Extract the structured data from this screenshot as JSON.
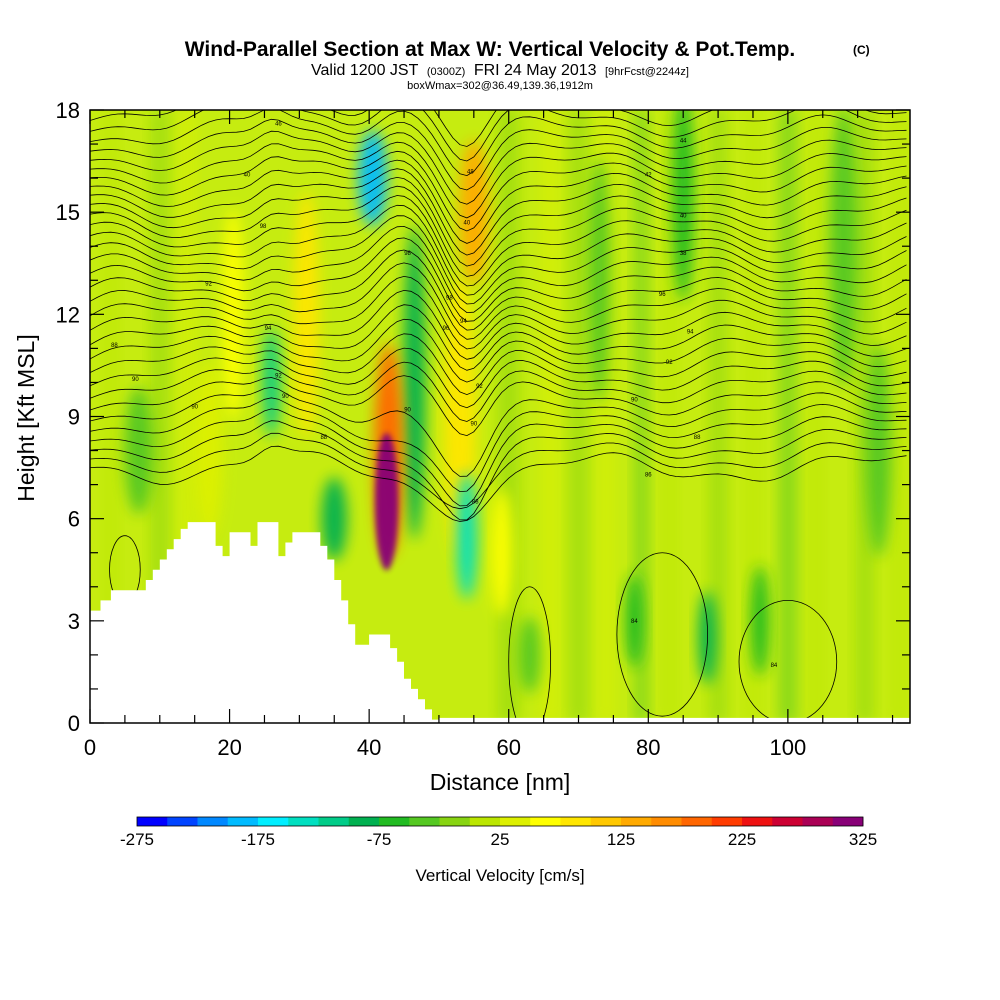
{
  "header": {
    "title": "Wind-Parallel Section at Max W: Vertical Velocity & Pot.Temp.",
    "title_mark": "(C)",
    "valid_main": "Valid 1200 JST",
    "valid_utc": "(0300Z)",
    "valid_date": "FRI 24 May 2013",
    "forecast": "[9hrFcst@2244z]",
    "box_info": "boxWmax=302@36.49,139.36,1912m"
  },
  "chart_data": {
    "type": "heatmap",
    "title": "Wind-Parallel Section at Max W: Vertical Velocity & Pot.Temp.",
    "xlabel": "Distance [nm]",
    "ylabel": "Height [Kft MSL]",
    "xlim": [
      0,
      117.5
    ],
    "ylim": [
      0,
      18
    ],
    "x_ticks": [
      0,
      20,
      40,
      60,
      80,
      100
    ],
    "y_ticks": [
      0,
      3,
      6,
      9,
      12,
      15,
      18
    ],
    "colorbar": {
      "label": "Vertical Velocity [cm/s]",
      "min": -275,
      "max": 325,
      "step": 25,
      "tick_labels": [
        -275,
        -175,
        -75,
        25,
        125,
        225,
        325
      ],
      "colors": [
        "#0000ff",
        "#0044ff",
        "#0088ff",
        "#00bbff",
        "#00eeff",
        "#00dfc0",
        "#00cc88",
        "#00b050",
        "#22bb22",
        "#55c822",
        "#88d411",
        "#bbe600",
        "#ddf000",
        "#ffff00",
        "#ffe600",
        "#ffc800",
        "#ffaa00",
        "#ff8c00",
        "#ff6600",
        "#ff3c00",
        "#ee1111",
        "#cc0033",
        "#aa0055",
        "#880077"
      ]
    },
    "terrain_profile": [
      [
        0,
        3.3
      ],
      [
        1.5,
        3.6
      ],
      [
        3,
        3.9
      ],
      [
        8,
        4.2
      ],
      [
        9,
        4.5
      ],
      [
        10,
        4.8
      ],
      [
        11,
        5.1
      ],
      [
        12,
        5.4
      ],
      [
        13,
        5.7
      ],
      [
        14,
        5.9
      ],
      [
        17,
        5.9
      ],
      [
        18,
        5.2
      ],
      [
        19,
        4.9
      ],
      [
        20,
        5.6
      ],
      [
        22,
        5.6
      ],
      [
        23,
        5.2
      ],
      [
        24,
        5.9
      ],
      [
        26,
        5.9
      ],
      [
        27,
        4.9
      ],
      [
        28,
        5.3
      ],
      [
        29,
        5.6
      ],
      [
        32,
        5.6
      ],
      [
        33,
        5.2
      ],
      [
        34,
        4.8
      ],
      [
        35,
        4.2
      ],
      [
        36,
        3.6
      ],
      [
        37,
        2.9
      ],
      [
        38,
        2.3
      ],
      [
        40,
        2.6
      ],
      [
        42,
        2.6
      ],
      [
        43,
        2.2
      ],
      [
        44,
        1.8
      ],
      [
        45,
        1.3
      ],
      [
        46,
        1.0
      ],
      [
        47,
        0.7
      ],
      [
        48,
        0.4
      ],
      [
        49,
        0.1
      ],
      [
        50,
        0
      ]
    ],
    "velocity_features": [
      {
        "x": 42.5,
        "y": 6.5,
        "value": 302,
        "width": 2.2,
        "height": 3.8
      },
      {
        "x": 42.8,
        "y": 8.0,
        "value": 180,
        "width": 3.0,
        "height": 6.0
      },
      {
        "x": 55.0,
        "y": 15.0,
        "value": 130,
        "width": 3.0,
        "height": 4.0
      },
      {
        "x": 53.0,
        "y": 9.0,
        "value": 85,
        "width": 3.5,
        "height": 8.0
      },
      {
        "x": 40.5,
        "y": 16.0,
        "value": -200,
        "width": 3.0,
        "height": 2.6
      },
      {
        "x": 54.0,
        "y": 5.5,
        "value": -140,
        "width": 1.8,
        "height": 3.5
      },
      {
        "x": 46.5,
        "y": 10.0,
        "value": -100,
        "width": 2.0,
        "height": 9.0
      },
      {
        "x": 35.0,
        "y": 6.0,
        "value": -90,
        "width": 2.5,
        "height": 2.2
      },
      {
        "x": 26.0,
        "y": 10.0,
        "value": -110,
        "width": 1.3,
        "height": 3.0
      },
      {
        "x": 31.0,
        "y": 12.0,
        "value": 80,
        "width": 2.5,
        "height": 7.0
      },
      {
        "x": 20.5,
        "y": 12.0,
        "value": 70,
        "width": 2.0,
        "height": 6.0
      },
      {
        "x": 17.0,
        "y": 8.0,
        "value": 45,
        "width": 3.0,
        "height": 5.0
      },
      {
        "x": 59.0,
        "y": 5.0,
        "value": 65,
        "width": 2.0,
        "height": 3.5
      },
      {
        "x": 88.5,
        "y": 2.5,
        "value": -95,
        "width": 1.5,
        "height": 2.5
      },
      {
        "x": 78.0,
        "y": 3.0,
        "value": -70,
        "width": 1.5,
        "height": 2.5
      },
      {
        "x": 63.0,
        "y": 2.0,
        "value": -50,
        "width": 2.0,
        "height": 2.0
      },
      {
        "x": 96.0,
        "y": 3.0,
        "value": -60,
        "width": 1.5,
        "height": 3.0
      },
      {
        "x": 85.0,
        "y": 15.5,
        "value": -55,
        "width": 2.0,
        "height": 6.0
      },
      {
        "x": 108.0,
        "y": 14.0,
        "value": -50,
        "width": 3.0,
        "height": 8.0
      },
      {
        "x": 73.0,
        "y": 13.0,
        "value": -40,
        "width": 2.0,
        "height": 7.0
      },
      {
        "x": 7.0,
        "y": 8.0,
        "value": -45,
        "width": 3.0,
        "height": 3.5
      },
      {
        "x": 113.0,
        "y": 8.0,
        "value": -35,
        "width": 2.5,
        "height": 6.0
      }
    ],
    "theta_contour_labels": [
      {
        "text": "88",
        "x": 3.5,
        "y": 11.1
      },
      {
        "text": "90",
        "x": 6.5,
        "y": 10.1
      },
      {
        "text": "90",
        "x": 15.0,
        "y": 9.3
      },
      {
        "text": "92",
        "x": 17.0,
        "y": 12.9
      },
      {
        "text": "94",
        "x": 25.5,
        "y": 11.6
      },
      {
        "text": "92",
        "x": 27.0,
        "y": 10.2
      },
      {
        "text": "90",
        "x": 28.0,
        "y": 9.6
      },
      {
        "text": "88",
        "x": 33.5,
        "y": 8.4
      },
      {
        "text": "90",
        "x": 45.5,
        "y": 9.2
      },
      {
        "text": "92",
        "x": 55.8,
        "y": 9.9
      },
      {
        "text": "88",
        "x": 55.2,
        "y": 6.5
      },
      {
        "text": "90",
        "x": 55.0,
        "y": 8.8
      },
      {
        "text": "94",
        "x": 53.5,
        "y": 11.8
      },
      {
        "text": "96",
        "x": 51.0,
        "y": 11.6
      },
      {
        "text": "98",
        "x": 51.5,
        "y": 12.5
      },
      {
        "text": "98",
        "x": 45.5,
        "y": 13.8
      },
      {
        "text": "40",
        "x": 54.0,
        "y": 14.7
      },
      {
        "text": "48",
        "x": 54.5,
        "y": 16.2
      },
      {
        "text": "46",
        "x": 27.0,
        "y": 17.6
      },
      {
        "text": "40",
        "x": 22.5,
        "y": 16.1
      },
      {
        "text": "98",
        "x": 24.8,
        "y": 14.6
      },
      {
        "text": "44",
        "x": 85.0,
        "y": 17.1
      },
      {
        "text": "42",
        "x": 80.0,
        "y": 16.1
      },
      {
        "text": "40",
        "x": 85.0,
        "y": 14.9
      },
      {
        "text": "38",
        "x": 85.0,
        "y": 13.8
      },
      {
        "text": "96",
        "x": 82.0,
        "y": 12.6
      },
      {
        "text": "94",
        "x": 86.0,
        "y": 11.5
      },
      {
        "text": "92",
        "x": 83.0,
        "y": 10.6
      },
      {
        "text": "90",
        "x": 78.0,
        "y": 9.5
      },
      {
        "text": "88",
        "x": 87.0,
        "y": 8.4
      },
      {
        "text": "86",
        "x": 80.0,
        "y": 7.3
      },
      {
        "text": "84",
        "x": 78.0,
        "y": 3.0
      },
      {
        "text": "84",
        "x": 98.0,
        "y": 1.7
      }
    ]
  }
}
